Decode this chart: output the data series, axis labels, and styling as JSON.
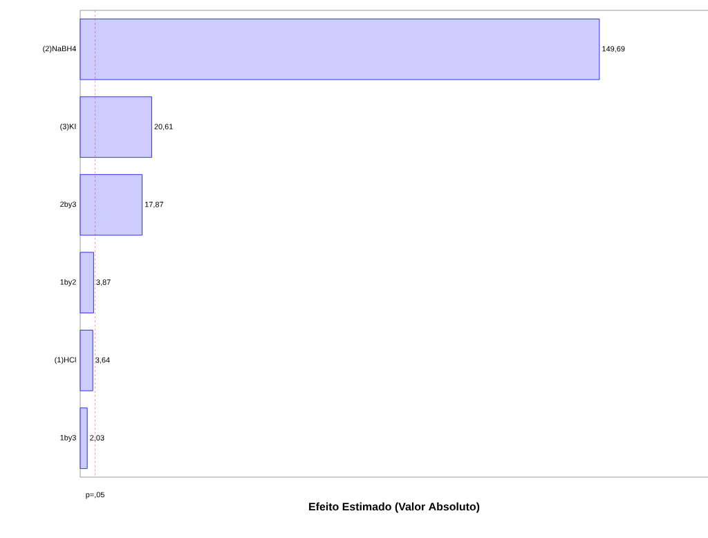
{
  "chart_data": {
    "type": "bar",
    "orientation": "horizontal",
    "xlabel": "Efeito Estimado (Valor Absoluto)",
    "categories": [
      "(2)NaBH4",
      "(3)KI",
      "2by3",
      "1by2",
      "(1)HCl",
      "1by3"
    ],
    "values": [
      149.69,
      20.61,
      17.87,
      3.87,
      3.64,
      2.03
    ],
    "value_labels": [
      "149,69",
      "20,61",
      "17,87",
      "3,87",
      "3,64",
      "2,03"
    ],
    "color": "#0000ff",
    "xlim": [
      0,
      181
    ],
    "ref_lines": [
      {
        "axis": "x",
        "value": 4.3,
        "label": "p=,05",
        "color": "#ff0000",
        "line_style": "dashed"
      }
    ]
  }
}
